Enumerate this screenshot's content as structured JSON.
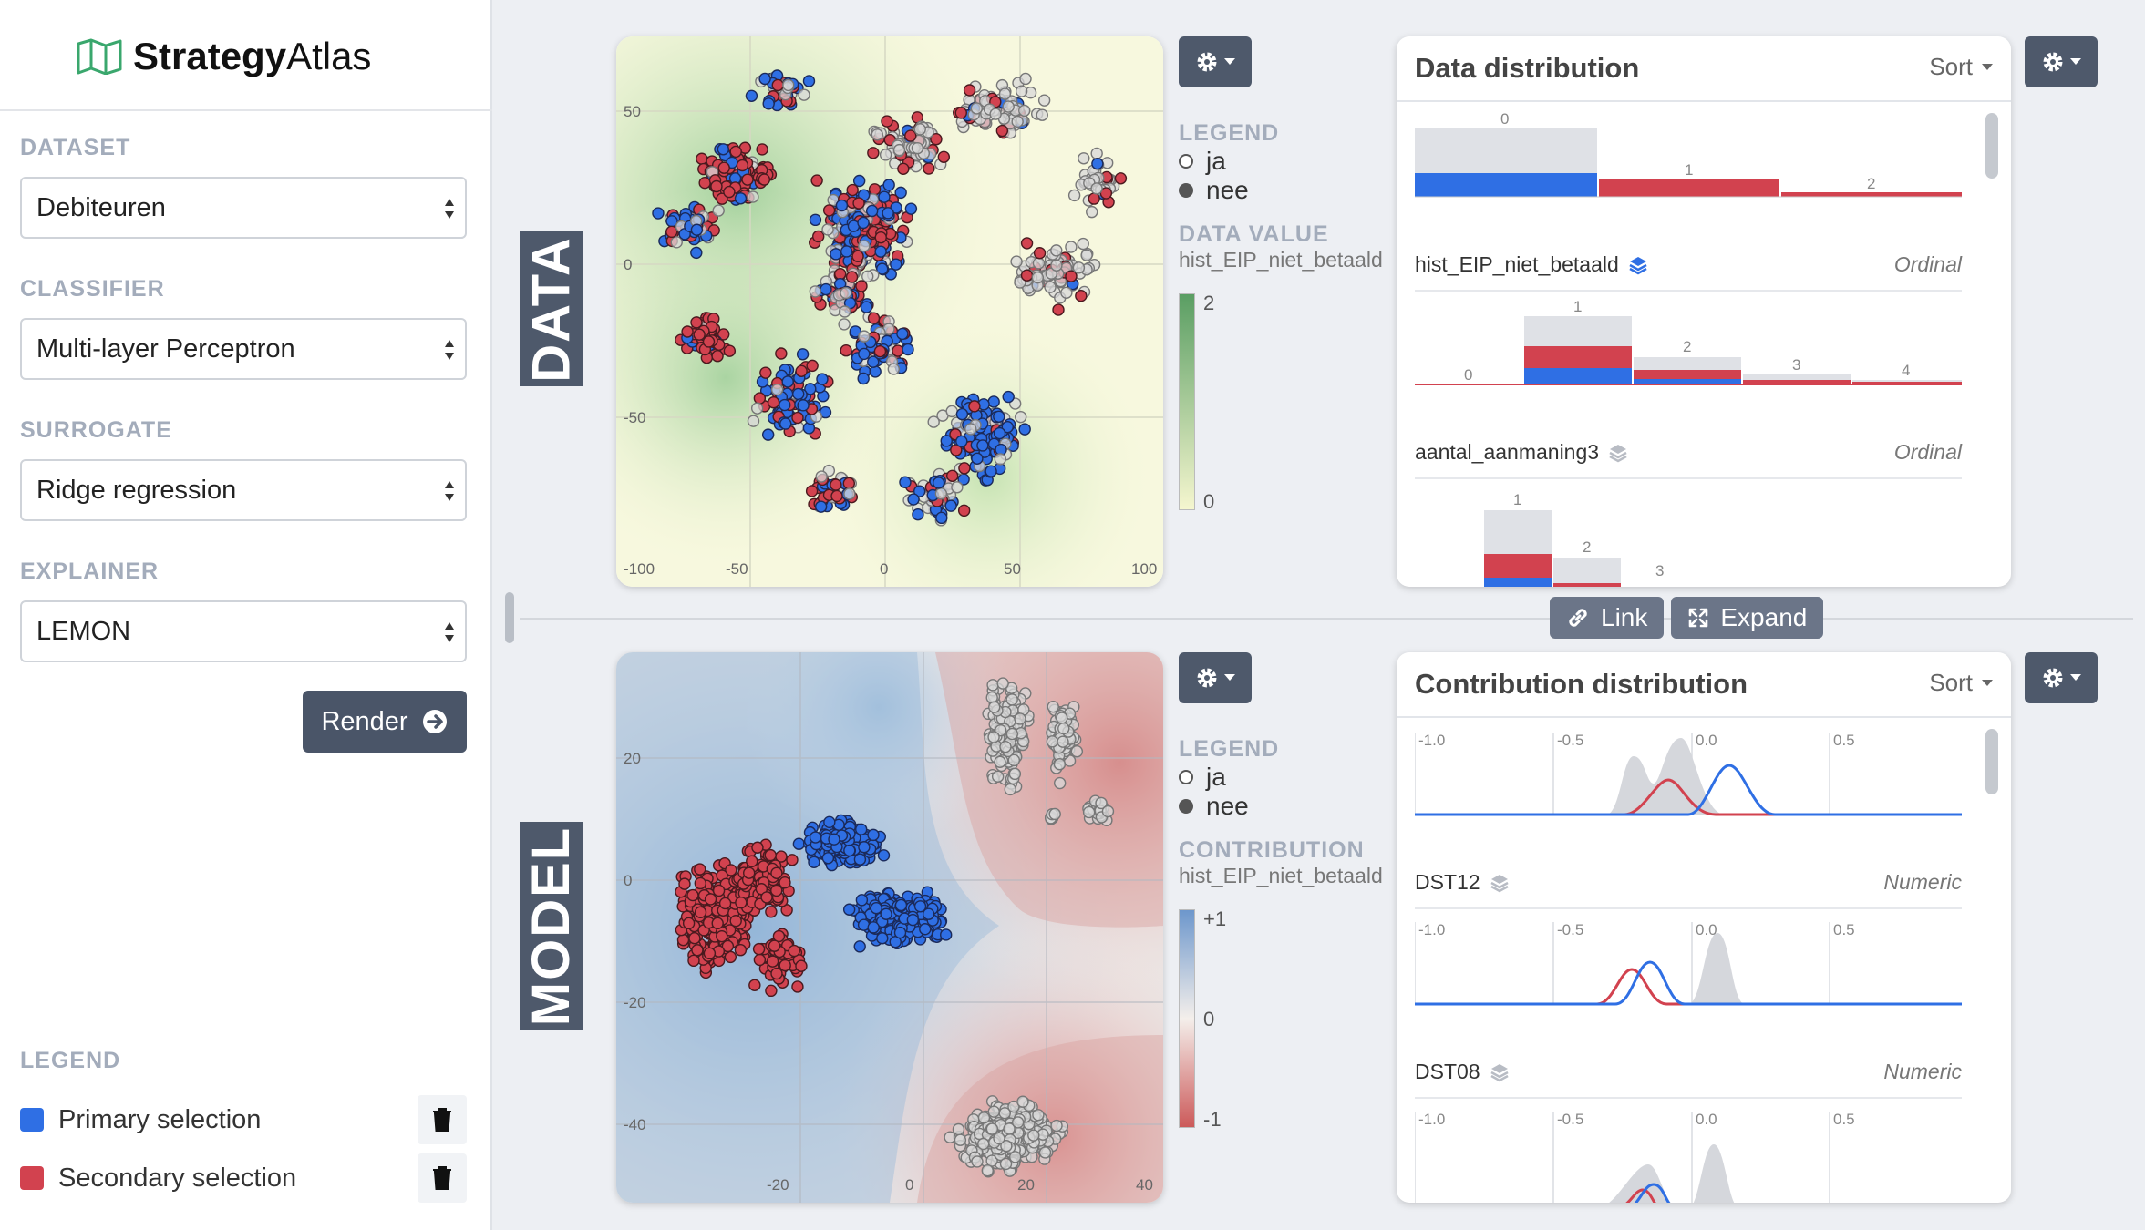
{
  "app": {
    "brand_bold": "Strategy",
    "brand_light": "Atlas"
  },
  "sidebar": {
    "dataset": {
      "label": "DATASET",
      "value": "Debiteuren"
    },
    "classifier": {
      "label": "CLASSIFIER",
      "value": "Multi-layer Perceptron"
    },
    "surrogate": {
      "label": "SURROGATE",
      "value": "Ridge regression"
    },
    "explainer": {
      "label": "EXPLAINER",
      "value": "LEMON"
    },
    "render_label": "Render",
    "legend_title": "LEGEND",
    "legend_items": [
      {
        "label": "Primary selection",
        "color": "#2f6fe4"
      },
      {
        "label": "Secondary selection",
        "color": "#d2424f"
      }
    ]
  },
  "data_section": {
    "title": "DATA",
    "plot": {
      "x_ticks": [
        "-100",
        "-50",
        "0",
        "50",
        "100"
      ],
      "y_ticks": [
        "50",
        "0",
        "-50"
      ]
    },
    "legend": {
      "title": "LEGEND",
      "items": [
        "ja",
        "nee"
      ],
      "value_title": "DATA VALUE",
      "feature": "hist_EIP_niet_betaald",
      "max": "2",
      "min": "0"
    }
  },
  "model_section": {
    "title": "MODEL",
    "plot": {
      "x_ticks": [
        "-20",
        "0",
        "20",
        "40"
      ],
      "y_ticks": [
        "20",
        "0",
        "-20",
        "-40"
      ]
    },
    "legend": {
      "title": "LEGEND",
      "items": [
        "ja",
        "nee"
      ],
      "value_title": "CONTRIBUTION",
      "feature": "hist_EIP_niet_betaald",
      "max": "+1",
      "mid": "0",
      "min": "-1"
    }
  },
  "data_distribution": {
    "title": "Data distribution",
    "sort_label": "Sort",
    "features": [
      {
        "name": "hist_EIP_niet_betaald",
        "type": "Ordinal",
        "bins": [
          "0",
          "1",
          "2"
        ]
      },
      {
        "name": "aantal_aanmaning3",
        "type": "Ordinal",
        "bins": [
          "0",
          "1",
          "2",
          "3",
          "4"
        ]
      },
      {
        "name": "",
        "type": "",
        "bins": [
          "1",
          "2",
          "3"
        ]
      }
    ]
  },
  "link_label": "Link",
  "expand_label": "Expand",
  "contribution_distribution": {
    "title": "Contribution distribution",
    "sort_label": "Sort",
    "axis": [
      "-1.0",
      "-0.5",
      "0.0",
      "0.5"
    ],
    "features": [
      {
        "name": "DST12",
        "type": "Numeric"
      },
      {
        "name": "DST08",
        "type": "Numeric"
      }
    ]
  }
}
